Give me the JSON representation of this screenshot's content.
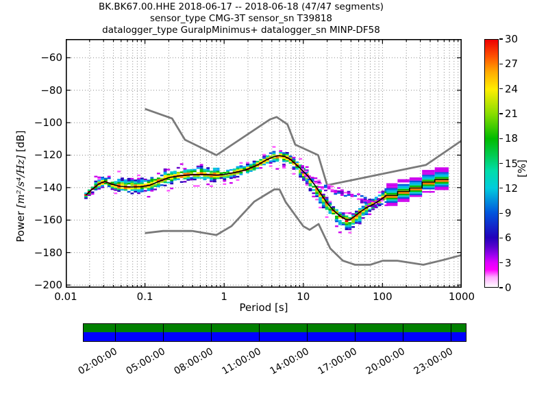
{
  "title": {
    "line1": "BK.BK67.00.HHE   2018-06-17 -- 2018-06-18  (47/47 segments)",
    "line2": "sensor_type CMG-3T sensor_sn T39818",
    "line3": "datalogger_type GuralpMinimus+ datalogger_sn MINP-DF58"
  },
  "chart_data": {
    "type": "heatmap",
    "subtype": "ppsd-probabilistic-power-spectral-density",
    "title": "BK.BK67.00.HHE   2018-06-17 -- 2018-06-18  (47/47 segments)",
    "xlabel": "Period [s]",
    "ylabel": "Power [m²/s⁴/Hz] [dB]",
    "ylabel_prefix": "Power ",
    "ylabel_math": "[m²/s⁴/Hz]",
    "ylabel_suffix": " [dB]",
    "colorbar_label": "[%]",
    "x_scale": "log",
    "xlim": [
      0.01,
      1000
    ],
    "ylim": [
      -201.6,
      -48.5
    ],
    "x_ticks": [
      "0.01",
      "0.1",
      "1",
      "10",
      "100",
      "1000"
    ],
    "y_ticks": [
      "-60",
      "-80",
      "-100",
      "-120",
      "-140",
      "-160",
      "-180",
      "-200"
    ],
    "colorbar_ticks": [
      "0",
      "3",
      "6",
      "9",
      "12",
      "15",
      "18",
      "21",
      "24",
      "27",
      "30"
    ],
    "colorbar_range": [
      0,
      30
    ],
    "grid": true,
    "colormap_stops": [
      [
        0.0,
        "#ffffff"
      ],
      [
        0.04,
        "#ffaaff"
      ],
      [
        0.07,
        "#ff00ff"
      ],
      [
        0.1,
        "#dd00ff"
      ],
      [
        0.13,
        "#9900ee"
      ],
      [
        0.165,
        "#5500cc"
      ],
      [
        0.2,
        "#2200bb"
      ],
      [
        0.3,
        "#0055dd"
      ],
      [
        0.4,
        "#00ccdd"
      ],
      [
        0.47,
        "#00ddaa"
      ],
      [
        0.53,
        "#00cc55"
      ],
      [
        0.6,
        "#00bb00"
      ],
      [
        0.7,
        "#88dd00"
      ],
      [
        0.8,
        "#ffee00"
      ],
      [
        0.87,
        "#ffaa00"
      ],
      [
        0.93,
        "#ff5500"
      ],
      [
        1.0,
        "#ee0000"
      ]
    ],
    "palette": [
      "#ee0000",
      "#ff7700",
      "#ffee00",
      "#99dd00",
      "#00bb00",
      "#00cc66",
      "#00cccc",
      "#00aaee",
      "#0055dd",
      "#2200bb",
      "#6600cc",
      "#cc00ee",
      "#ff55ff"
    ],
    "noise_models": {
      "color": "#7a7a7a",
      "high": [
        [
          0.1,
          -91.5
        ],
        [
          0.22,
          -97.4
        ],
        [
          0.32,
          -110.5
        ],
        [
          0.8,
          -120.0
        ],
        [
          3.8,
          -98.0
        ],
        [
          4.6,
          -96.5
        ],
        [
          6.3,
          -101.0
        ],
        [
          7.9,
          -113.5
        ],
        [
          15.4,
          -120.0
        ],
        [
          20.0,
          -138.5
        ],
        [
          354.8,
          -126.0
        ],
        [
          1000,
          -111.0
        ]
      ],
      "low": [
        [
          0.1,
          -168.0
        ],
        [
          0.17,
          -166.7
        ],
        [
          0.4,
          -166.7
        ],
        [
          0.8,
          -169.2
        ],
        [
          1.24,
          -163.7
        ],
        [
          2.4,
          -148.6
        ],
        [
          4.3,
          -141.1
        ],
        [
          5.0,
          -141.1
        ],
        [
          6.0,
          -149.0
        ],
        [
          10.0,
          -163.8
        ],
        [
          12.0,
          -166.0
        ],
        [
          15.6,
          -162.4
        ],
        [
          21.9,
          -177.5
        ],
        [
          31.6,
          -185.0
        ],
        [
          45.0,
          -187.5
        ],
        [
          70.0,
          -187.5
        ],
        [
          101.0,
          -185.0
        ],
        [
          154.0,
          -185.0
        ],
        [
          328.0,
          -187.5
        ],
        [
          600.0,
          -184.4
        ],
        [
          1000,
          -181.5
        ]
      ]
    },
    "mode_line": [
      [
        0.018,
        -144.5
      ],
      [
        0.021,
        -141.5
      ],
      [
        0.026,
        -137.8
      ],
      [
        0.031,
        -136.2
      ],
      [
        0.038,
        -137.8
      ],
      [
        0.048,
        -139.2
      ],
      [
        0.065,
        -139.6
      ],
      [
        0.09,
        -139.4
      ],
      [
        0.115,
        -138.5
      ],
      [
        0.15,
        -136.2
      ],
      [
        0.2,
        -133.8
      ],
      [
        0.28,
        -132.6
      ],
      [
        0.4,
        -132.0
      ],
      [
        0.6,
        -131.9
      ],
      [
        0.8,
        -132.3
      ],
      [
        1.0,
        -131.9
      ],
      [
        1.4,
        -130.6
      ],
      [
        1.9,
        -129.0
      ],
      [
        2.6,
        -126.2
      ],
      [
        3.4,
        -123.0
      ],
      [
        4.2,
        -121.0
      ],
      [
        4.9,
        -120.3
      ],
      [
        5.8,
        -120.8
      ],
      [
        6.8,
        -122.5
      ],
      [
        8.0,
        -125.5
      ],
      [
        9.5,
        -129.0
      ],
      [
        11.5,
        -133.0
      ],
      [
        14,
        -138.5
      ],
      [
        17,
        -144.5
      ],
      [
        20,
        -149.5
      ],
      [
        24,
        -154.0
      ],
      [
        29,
        -157.5
      ],
      [
        34,
        -159.5
      ],
      [
        38,
        -160.0
      ],
      [
        44,
        -157.8
      ],
      [
        52,
        -155.0
      ],
      [
        62,
        -152.5
      ],
      [
        75,
        -150.5
      ],
      [
        90,
        -148.2
      ],
      [
        112,
        -144.8
      ]
    ],
    "stripe_blocks": {
      "bounds": [
        112,
        155,
        219,
        316,
        457,
        684
      ],
      "modes": [
        -144.8,
        -142.3,
        -140.2,
        -136.6,
        -135.0
      ]
    },
    "upper_branch": [
      [
        9.5,
        -128.0
      ],
      [
        11,
        -131.5
      ],
      [
        13,
        -134.8
      ],
      [
        16,
        -137.8
      ],
      [
        20,
        -140.2
      ],
      [
        25,
        -141.8
      ],
      [
        31,
        -142.6
      ],
      [
        38,
        -143.6
      ],
      [
        47,
        -145.4
      ],
      [
        57,
        -147.6
      ],
      [
        68,
        -149.3
      ],
      [
        80,
        -149.8
      ],
      [
        95,
        -148.6
      ],
      [
        110,
        -146.0
      ]
    ],
    "timeline": {
      "labels": [
        "02:00:00",
        "05:00:00",
        "08:00:00",
        "11:00:00",
        "14:00:00",
        "17:00:00",
        "20:00:00",
        "23:00:00"
      ],
      "label_hours": [
        2,
        5,
        8,
        11,
        14,
        17,
        20,
        23
      ],
      "hours_span": 24,
      "top_band_color": "#008000",
      "bottom_band_color": "#0000ff"
    }
  }
}
